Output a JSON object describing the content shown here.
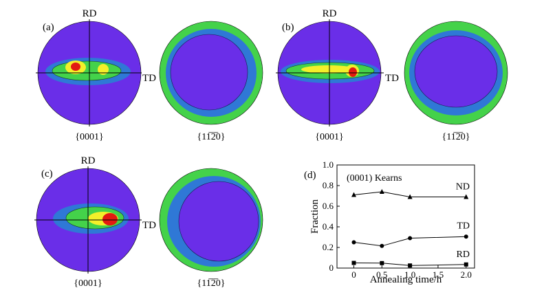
{
  "colors": {
    "background": "#ffffff",
    "pf_base": "#6a2ee8",
    "pf_mid": "#2f78d6",
    "pf_green": "#44d24a",
    "pf_yellow": "#f4ef2a",
    "pf_red": "#e21a12",
    "line": "#000000"
  },
  "panels": [
    {
      "label": "(a)",
      "rd_label": "RD",
      "td_label": "TD",
      "basal_caption": "{0001}",
      "prism_caption": "{11̅2̅0}"
    },
    {
      "label": "(b)",
      "rd_label": "RD",
      "td_label": "TD",
      "basal_caption": "{0001}",
      "prism_caption": "{11̅2̅0}"
    },
    {
      "label": "(c)",
      "rd_label": "RD",
      "td_label": "TD",
      "basal_caption": "{0001}",
      "prism_caption": "{11̅2̅0}"
    }
  ],
  "chart_data": {
    "type": "line",
    "panel_label": "(d)",
    "annotation": "(0001) Kearns",
    "xlabel": "Annealing time/h",
    "ylabel": "Fraction",
    "xlim": [
      -0.3,
      2.15
    ],
    "ylim": [
      0,
      1.0
    ],
    "xticks": [
      "0",
      "0.5",
      "1.0",
      "1.5",
      "2.0"
    ],
    "yticks": [
      "0",
      "0.2",
      "0.4",
      "0.6",
      "0.8",
      "1.0"
    ],
    "x": [
      0,
      0.5,
      1.0,
      2.0
    ],
    "series": [
      {
        "name": "ND",
        "marker": "triangle",
        "values": [
          0.71,
          0.74,
          0.69,
          0.69
        ]
      },
      {
        "name": "TD",
        "marker": "circle",
        "values": [
          0.25,
          0.215,
          0.29,
          0.305
        ]
      },
      {
        "name": "RD",
        "marker": "square",
        "values": [
          0.05,
          0.048,
          0.025,
          0.035
        ]
      }
    ]
  }
}
